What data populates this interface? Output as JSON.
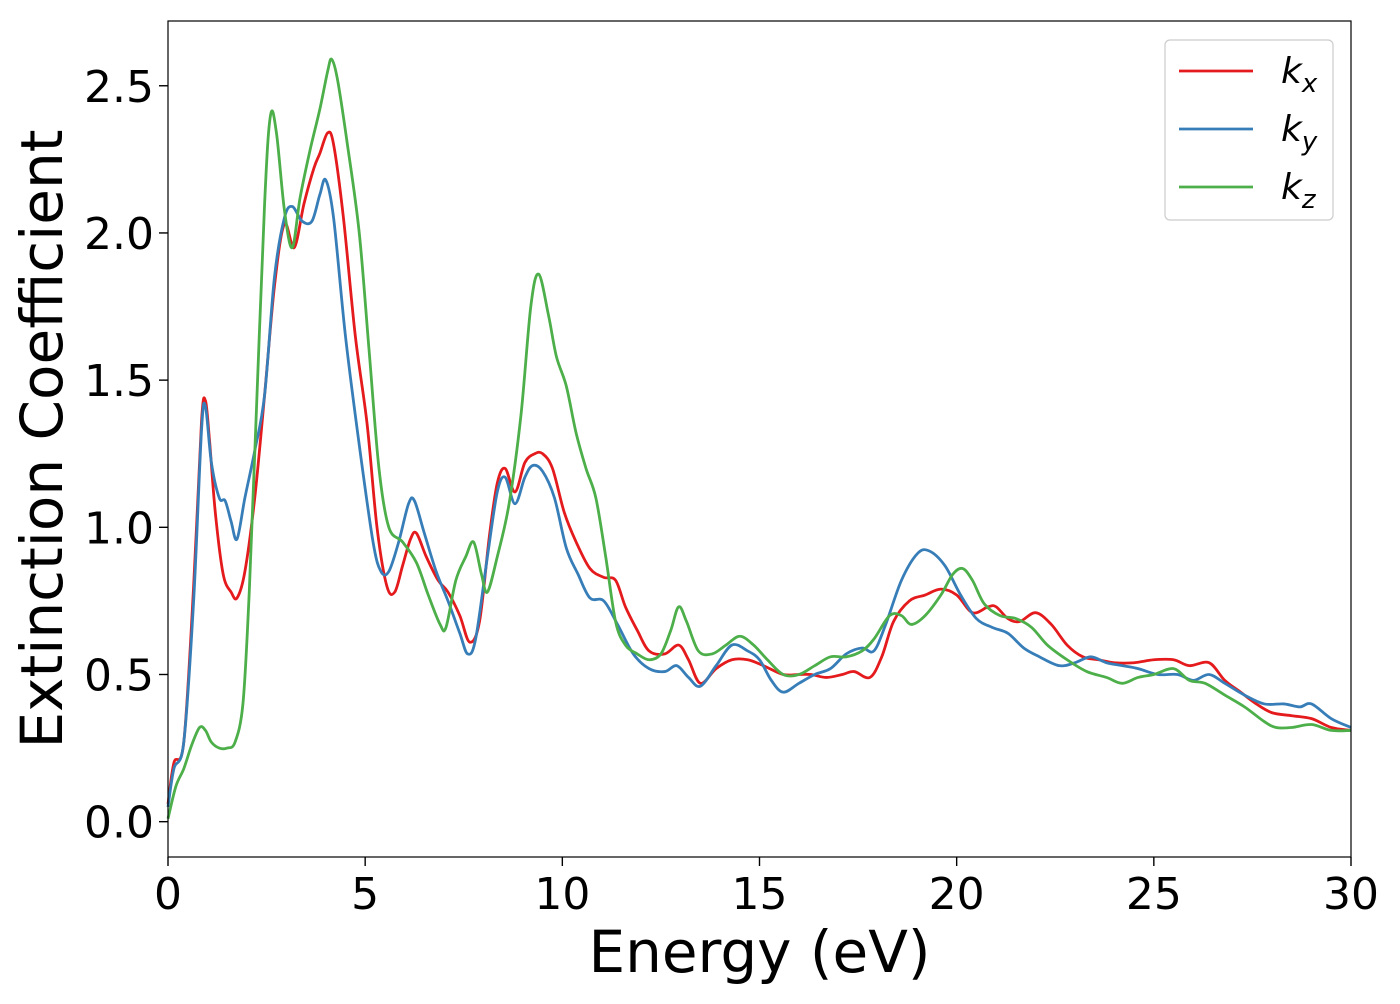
{
  "chart_data": {
    "type": "line",
    "title": "",
    "xlabel": "Energy (eV)",
    "ylabel": "Extinction Coefficient",
    "xlim": [
      0,
      30
    ],
    "ylim": [
      -0.12,
      2.72
    ],
    "xticks": [
      0,
      5,
      10,
      15,
      20,
      25,
      30
    ],
    "xtick_labels": [
      "0",
      "5",
      "10",
      "15",
      "20",
      "25",
      "30"
    ],
    "yticks": [
      0.0,
      0.5,
      1.0,
      1.5,
      2.0,
      2.5
    ],
    "ytick_labels": [
      "0.0",
      "0.5",
      "1.0",
      "1.5",
      "2.0",
      "2.5"
    ],
    "grid": false,
    "legend_position": "top-right",
    "series": [
      {
        "name": "k_x",
        "label_base": "k",
        "label_sub": "x",
        "color": "#e41a1c",
        "points": [
          [
            0,
            0.06
          ],
          [
            0.15,
            0.2
          ],
          [
            0.4,
            0.27
          ],
          [
            0.65,
            0.8
          ],
          [
            0.85,
            1.36
          ],
          [
            0.95,
            1.43
          ],
          [
            1.05,
            1.3
          ],
          [
            1.2,
            1.05
          ],
          [
            1.4,
            0.84
          ],
          [
            1.6,
            0.78
          ],
          [
            1.75,
            0.76
          ],
          [
            1.95,
            0.85
          ],
          [
            2.2,
            1.1
          ],
          [
            2.45,
            1.45
          ],
          [
            2.7,
            1.82
          ],
          [
            2.95,
            2.03
          ],
          [
            3.2,
            1.95
          ],
          [
            3.45,
            2.1
          ],
          [
            3.7,
            2.22
          ],
          [
            3.85,
            2.27
          ],
          [
            4.05,
            2.34
          ],
          [
            4.2,
            2.3
          ],
          [
            4.45,
            2.05
          ],
          [
            4.75,
            1.65
          ],
          [
            5.05,
            1.35
          ],
          [
            5.3,
            1.0
          ],
          [
            5.55,
            0.8
          ],
          [
            5.75,
            0.78
          ],
          [
            5.95,
            0.87
          ],
          [
            6.15,
            0.96
          ],
          [
            6.3,
            0.98
          ],
          [
            6.55,
            0.9
          ],
          [
            6.85,
            0.82
          ],
          [
            7.1,
            0.78
          ],
          [
            7.4,
            0.7
          ],
          [
            7.65,
            0.61
          ],
          [
            7.9,
            0.68
          ],
          [
            8.15,
            0.97
          ],
          [
            8.35,
            1.15
          ],
          [
            8.55,
            1.2
          ],
          [
            8.8,
            1.12
          ],
          [
            9.05,
            1.22
          ],
          [
            9.3,
            1.25
          ],
          [
            9.5,
            1.25
          ],
          [
            9.75,
            1.2
          ],
          [
            10.05,
            1.05
          ],
          [
            10.35,
            0.95
          ],
          [
            10.7,
            0.86
          ],
          [
            11.05,
            0.83
          ],
          [
            11.35,
            0.82
          ],
          [
            11.6,
            0.73
          ],
          [
            11.9,
            0.65
          ],
          [
            12.2,
            0.58
          ],
          [
            12.6,
            0.57
          ],
          [
            12.95,
            0.6
          ],
          [
            13.2,
            0.55
          ],
          [
            13.5,
            0.47
          ],
          [
            13.9,
            0.52
          ],
          [
            14.3,
            0.55
          ],
          [
            14.7,
            0.55
          ],
          [
            15.1,
            0.53
          ],
          [
            15.6,
            0.5
          ],
          [
            16.0,
            0.5
          ],
          [
            16.3,
            0.5
          ],
          [
            16.7,
            0.49
          ],
          [
            17.1,
            0.5
          ],
          [
            17.4,
            0.51
          ],
          [
            17.8,
            0.49
          ],
          [
            18.1,
            0.56
          ],
          [
            18.4,
            0.68
          ],
          [
            18.8,
            0.75
          ],
          [
            19.2,
            0.77
          ],
          [
            19.6,
            0.79
          ],
          [
            20.0,
            0.77
          ],
          [
            20.4,
            0.71
          ],
          [
            20.8,
            0.73
          ],
          [
            21.0,
            0.73
          ],
          [
            21.3,
            0.69
          ],
          [
            21.6,
            0.68
          ],
          [
            22.0,
            0.71
          ],
          [
            22.4,
            0.67
          ],
          [
            22.8,
            0.6
          ],
          [
            23.2,
            0.56
          ],
          [
            23.6,
            0.55
          ],
          [
            24.0,
            0.54
          ],
          [
            24.5,
            0.54
          ],
          [
            25.0,
            0.55
          ],
          [
            25.5,
            0.55
          ],
          [
            25.9,
            0.53
          ],
          [
            26.4,
            0.54
          ],
          [
            26.8,
            0.48
          ],
          [
            27.2,
            0.44
          ],
          [
            27.6,
            0.4
          ],
          [
            28.0,
            0.37
          ],
          [
            28.5,
            0.36
          ],
          [
            29.0,
            0.35
          ],
          [
            29.5,
            0.32
          ],
          [
            30.0,
            0.31
          ]
        ]
      },
      {
        "name": "k_y",
        "label_base": "k",
        "label_sub": "y",
        "color": "#377eb8",
        "points": [
          [
            0,
            0.05
          ],
          [
            0.15,
            0.18
          ],
          [
            0.4,
            0.27
          ],
          [
            0.65,
            0.75
          ],
          [
            0.85,
            1.33
          ],
          [
            0.95,
            1.41
          ],
          [
            1.1,
            1.22
          ],
          [
            1.3,
            1.1
          ],
          [
            1.45,
            1.09
          ],
          [
            1.6,
            1.02
          ],
          [
            1.75,
            0.96
          ],
          [
            1.95,
            1.1
          ],
          [
            2.2,
            1.26
          ],
          [
            2.45,
            1.45
          ],
          [
            2.7,
            1.85
          ],
          [
            2.95,
            2.05
          ],
          [
            3.15,
            2.09
          ],
          [
            3.4,
            2.04
          ],
          [
            3.65,
            2.04
          ],
          [
            3.85,
            2.13
          ],
          [
            4.0,
            2.18
          ],
          [
            4.2,
            2.05
          ],
          [
            4.5,
            1.65
          ],
          [
            4.85,
            1.28
          ],
          [
            5.2,
            0.95
          ],
          [
            5.4,
            0.85
          ],
          [
            5.6,
            0.85
          ],
          [
            5.85,
            0.95
          ],
          [
            6.1,
            1.08
          ],
          [
            6.25,
            1.09
          ],
          [
            6.5,
            0.98
          ],
          [
            6.8,
            0.85
          ],
          [
            7.1,
            0.75
          ],
          [
            7.4,
            0.64
          ],
          [
            7.6,
            0.57
          ],
          [
            7.8,
            0.62
          ],
          [
            8.1,
            0.9
          ],
          [
            8.35,
            1.12
          ],
          [
            8.55,
            1.17
          ],
          [
            8.8,
            1.08
          ],
          [
            9.05,
            1.17
          ],
          [
            9.25,
            1.21
          ],
          [
            9.5,
            1.19
          ],
          [
            9.8,
            1.1
          ],
          [
            10.1,
            0.93
          ],
          [
            10.4,
            0.84
          ],
          [
            10.7,
            0.76
          ],
          [
            11.05,
            0.75
          ],
          [
            11.4,
            0.67
          ],
          [
            11.8,
            0.57
          ],
          [
            12.2,
            0.52
          ],
          [
            12.6,
            0.51
          ],
          [
            12.9,
            0.53
          ],
          [
            13.2,
            0.49
          ],
          [
            13.5,
            0.46
          ],
          [
            13.9,
            0.53
          ],
          [
            14.3,
            0.6
          ],
          [
            14.7,
            0.58
          ],
          [
            15.0,
            0.55
          ],
          [
            15.3,
            0.48
          ],
          [
            15.6,
            0.44
          ],
          [
            16.0,
            0.47
          ],
          [
            16.4,
            0.5
          ],
          [
            16.8,
            0.52
          ],
          [
            17.2,
            0.57
          ],
          [
            17.6,
            0.59
          ],
          [
            17.9,
            0.58
          ],
          [
            18.2,
            0.67
          ],
          [
            18.6,
            0.82
          ],
          [
            19.0,
            0.91
          ],
          [
            19.3,
            0.92
          ],
          [
            19.7,
            0.87
          ],
          [
            20.1,
            0.77
          ],
          [
            20.5,
            0.69
          ],
          [
            20.9,
            0.66
          ],
          [
            21.3,
            0.64
          ],
          [
            21.7,
            0.59
          ],
          [
            22.1,
            0.56
          ],
          [
            22.6,
            0.53
          ],
          [
            23.0,
            0.54
          ],
          [
            23.4,
            0.56
          ],
          [
            23.8,
            0.54
          ],
          [
            24.2,
            0.53
          ],
          [
            24.6,
            0.52
          ],
          [
            25.1,
            0.5
          ],
          [
            25.6,
            0.5
          ],
          [
            26.0,
            0.48
          ],
          [
            26.4,
            0.5
          ],
          [
            26.8,
            0.47
          ],
          [
            27.3,
            0.43
          ],
          [
            27.8,
            0.4
          ],
          [
            28.3,
            0.4
          ],
          [
            28.7,
            0.39
          ],
          [
            29.0,
            0.4
          ],
          [
            29.5,
            0.35
          ],
          [
            30.0,
            0.32
          ]
        ]
      },
      {
        "name": "k_z",
        "label_base": "k",
        "label_sub": "z",
        "color": "#4daf4a",
        "points": [
          [
            0,
            0.01
          ],
          [
            0.2,
            0.12
          ],
          [
            0.4,
            0.18
          ],
          [
            0.6,
            0.26
          ],
          [
            0.8,
            0.32
          ],
          [
            0.95,
            0.31
          ],
          [
            1.1,
            0.27
          ],
          [
            1.3,
            0.25
          ],
          [
            1.5,
            0.25
          ],
          [
            1.7,
            0.27
          ],
          [
            1.9,
            0.4
          ],
          [
            2.05,
            0.75
          ],
          [
            2.2,
            1.25
          ],
          [
            2.45,
            2.1
          ],
          [
            2.6,
            2.4
          ],
          [
            2.75,
            2.34
          ],
          [
            2.95,
            2.08
          ],
          [
            3.15,
            1.95
          ],
          [
            3.35,
            2.12
          ],
          [
            3.6,
            2.28
          ],
          [
            3.85,
            2.42
          ],
          [
            4.05,
            2.55
          ],
          [
            4.15,
            2.59
          ],
          [
            4.3,
            2.52
          ],
          [
            4.55,
            2.3
          ],
          [
            4.85,
            2.0
          ],
          [
            5.1,
            1.6
          ],
          [
            5.35,
            1.2
          ],
          [
            5.6,
            1.0
          ],
          [
            5.95,
            0.95
          ],
          [
            6.3,
            0.88
          ],
          [
            6.6,
            0.77
          ],
          [
            6.9,
            0.67
          ],
          [
            7.05,
            0.66
          ],
          [
            7.3,
            0.82
          ],
          [
            7.55,
            0.9
          ],
          [
            7.75,
            0.95
          ],
          [
            7.95,
            0.84
          ],
          [
            8.1,
            0.78
          ],
          [
            8.35,
            0.9
          ],
          [
            8.65,
            1.08
          ],
          [
            8.95,
            1.38
          ],
          [
            9.2,
            1.75
          ],
          [
            9.4,
            1.86
          ],
          [
            9.65,
            1.72
          ],
          [
            9.85,
            1.58
          ],
          [
            10.1,
            1.48
          ],
          [
            10.35,
            1.32
          ],
          [
            10.6,
            1.2
          ],
          [
            10.85,
            1.1
          ],
          [
            11.1,
            0.9
          ],
          [
            11.35,
            0.68
          ],
          [
            11.6,
            0.6
          ],
          [
            11.9,
            0.57
          ],
          [
            12.2,
            0.55
          ],
          [
            12.5,
            0.57
          ],
          [
            12.75,
            0.65
          ],
          [
            12.95,
            0.73
          ],
          [
            13.15,
            0.68
          ],
          [
            13.45,
            0.58
          ],
          [
            13.8,
            0.57
          ],
          [
            14.15,
            0.6
          ],
          [
            14.5,
            0.63
          ],
          [
            14.85,
            0.6
          ],
          [
            15.2,
            0.55
          ],
          [
            15.6,
            0.5
          ],
          [
            16.0,
            0.5
          ],
          [
            16.4,
            0.53
          ],
          [
            16.8,
            0.56
          ],
          [
            17.2,
            0.56
          ],
          [
            17.6,
            0.58
          ],
          [
            17.9,
            0.62
          ],
          [
            18.3,
            0.7
          ],
          [
            18.6,
            0.7
          ],
          [
            18.85,
            0.67
          ],
          [
            19.2,
            0.7
          ],
          [
            19.6,
            0.77
          ],
          [
            19.9,
            0.84
          ],
          [
            20.15,
            0.86
          ],
          [
            20.4,
            0.82
          ],
          [
            20.7,
            0.74
          ],
          [
            21.1,
            0.7
          ],
          [
            21.5,
            0.69
          ],
          [
            21.9,
            0.66
          ],
          [
            22.3,
            0.6
          ],
          [
            22.8,
            0.55
          ],
          [
            23.3,
            0.51
          ],
          [
            23.8,
            0.49
          ],
          [
            24.2,
            0.47
          ],
          [
            24.6,
            0.49
          ],
          [
            25.0,
            0.5
          ],
          [
            25.5,
            0.52
          ],
          [
            25.9,
            0.48
          ],
          [
            26.3,
            0.47
          ],
          [
            26.8,
            0.43
          ],
          [
            27.3,
            0.39
          ],
          [
            27.8,
            0.34
          ],
          [
            28.1,
            0.32
          ],
          [
            28.5,
            0.32
          ],
          [
            29.0,
            0.33
          ],
          [
            29.5,
            0.31
          ],
          [
            30.0,
            0.31
          ]
        ]
      }
    ]
  }
}
